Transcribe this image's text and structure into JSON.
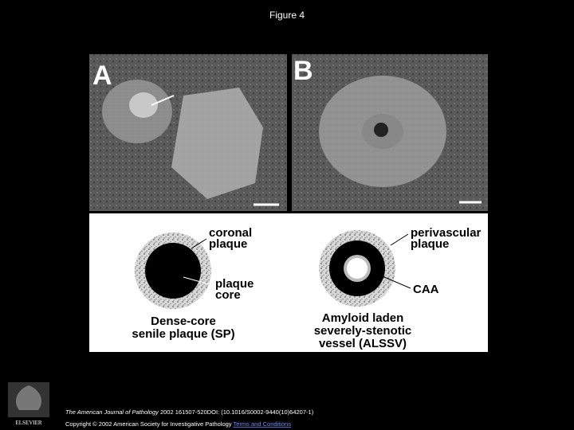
{
  "title": "Figure 4",
  "figure": {
    "panels": [
      {
        "label": "A"
      },
      {
        "label": "B"
      }
    ],
    "diagram": {
      "left": {
        "outer_label": [
          "coronal",
          "plaque"
        ],
        "inner_label": [
          "plaque",
          "core"
        ],
        "caption": [
          "Dense-core",
          "senile plaque (SP)"
        ]
      },
      "right": {
        "outer_label": [
          "perivascular",
          "plaque"
        ],
        "inner_label": [
          "CAA"
        ],
        "caption": [
          "Amyloid laden",
          "severely-stenotic",
          "vessel (ALSSV)"
        ]
      }
    }
  },
  "footer": {
    "publisher": "ELSEVIER",
    "journal": "The American Journal of Pathology",
    "citation": " 2002 161507-520DOI: (10.1016/S0002-9440(10)64207-1)",
    "copyright": "Copyright © 2002 American Society for Investigative Pathology ",
    "terms": "Terms and Conditions"
  }
}
